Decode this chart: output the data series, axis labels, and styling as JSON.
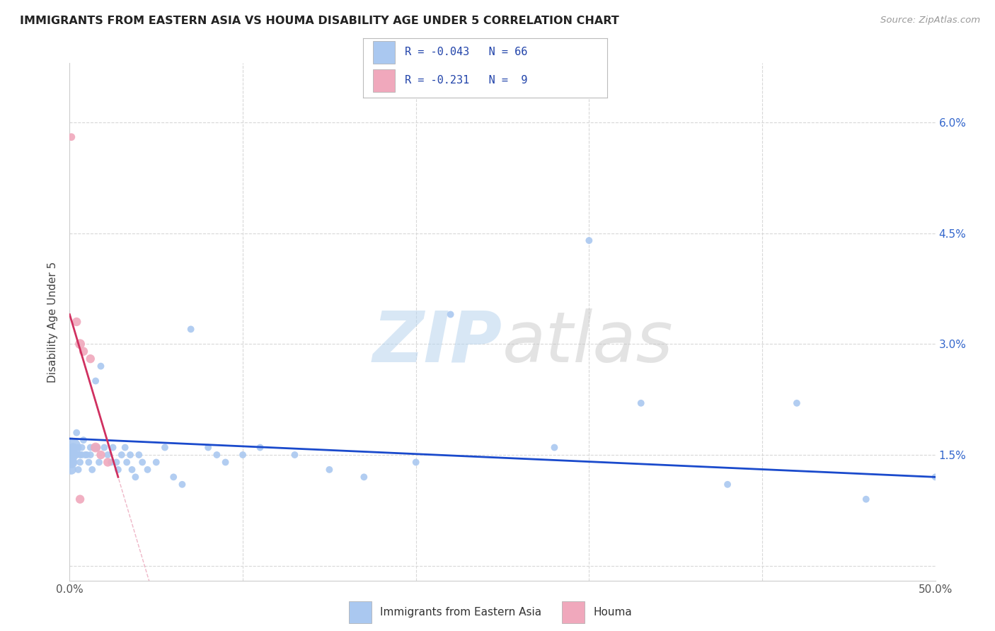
{
  "title": "IMMIGRANTS FROM EASTERN ASIA VS HOUMA DISABILITY AGE UNDER 5 CORRELATION CHART",
  "source": "Source: ZipAtlas.com",
  "ylabel": "Disability Age Under 5",
  "legend_label_blue": "Immigrants from Eastern Asia",
  "legend_label_pink": "Houma",
  "R_blue": -0.043,
  "N_blue": 66,
  "R_pink": -0.231,
  "N_pink": 9,
  "xlim": [
    0.0,
    0.5
  ],
  "ylim": [
    -0.002,
    0.068
  ],
  "color_blue": "#aac8f0",
  "color_blue_line": "#1a4acc",
  "color_pink": "#f0a8bc",
  "color_pink_line": "#d03060",
  "color_grid": "#d8d8d8",
  "background": "#ffffff",
  "blue_line_y0": 0.0172,
  "blue_line_y1": 0.012,
  "pink_line_x0": 0.0,
  "pink_line_y0": 0.034,
  "pink_line_x1": 0.028,
  "pink_line_y1": 0.012,
  "blue_x": [
    0.001,
    0.001,
    0.001,
    0.001,
    0.002,
    0.002,
    0.002,
    0.003,
    0.003,
    0.004,
    0.004,
    0.005,
    0.005,
    0.006,
    0.006,
    0.007,
    0.007,
    0.008,
    0.009,
    0.01,
    0.011,
    0.012,
    0.012,
    0.013,
    0.014,
    0.015,
    0.016,
    0.017,
    0.018,
    0.02,
    0.022,
    0.024,
    0.025,
    0.027,
    0.028,
    0.03,
    0.032,
    0.033,
    0.035,
    0.036,
    0.038,
    0.04,
    0.042,
    0.045,
    0.05,
    0.055,
    0.06,
    0.065,
    0.07,
    0.08,
    0.085,
    0.09,
    0.1,
    0.11,
    0.13,
    0.15,
    0.17,
    0.2,
    0.22,
    0.28,
    0.3,
    0.33,
    0.38,
    0.42,
    0.46,
    0.5
  ],
  "blue_y": [
    0.016,
    0.015,
    0.014,
    0.013,
    0.016,
    0.015,
    0.014,
    0.016,
    0.015,
    0.018,
    0.015,
    0.016,
    0.013,
    0.015,
    0.014,
    0.016,
    0.015,
    0.017,
    0.015,
    0.015,
    0.014,
    0.016,
    0.015,
    0.013,
    0.016,
    0.025,
    0.016,
    0.014,
    0.027,
    0.016,
    0.015,
    0.014,
    0.016,
    0.014,
    0.013,
    0.015,
    0.016,
    0.014,
    0.015,
    0.013,
    0.012,
    0.015,
    0.014,
    0.013,
    0.014,
    0.016,
    0.012,
    0.011,
    0.032,
    0.016,
    0.015,
    0.014,
    0.015,
    0.016,
    0.015,
    0.013,
    0.012,
    0.014,
    0.034,
    0.016,
    0.044,
    0.022,
    0.011,
    0.022,
    0.009,
    0.012
  ],
  "blue_size": [
    400,
    200,
    150,
    100,
    80,
    70,
    60,
    60,
    50,
    50,
    50,
    50,
    50,
    50,
    50,
    50,
    50,
    50,
    50,
    50,
    50,
    50,
    50,
    50,
    50,
    50,
    50,
    50,
    50,
    50,
    50,
    50,
    50,
    50,
    50,
    50,
    50,
    50,
    50,
    50,
    50,
    50,
    50,
    50,
    50,
    50,
    50,
    50,
    50,
    50,
    50,
    50,
    50,
    50,
    50,
    50,
    50,
    50,
    50,
    50,
    50,
    50,
    50,
    50,
    50,
    50
  ],
  "pink_x": [
    0.001,
    0.004,
    0.006,
    0.008,
    0.012,
    0.015,
    0.018,
    0.022,
    0.006
  ],
  "pink_y": [
    0.058,
    0.033,
    0.03,
    0.029,
    0.028,
    0.016,
    0.015,
    0.014,
    0.009
  ],
  "pink_size": [
    60,
    80,
    100,
    80,
    80,
    100,
    80,
    80,
    80
  ]
}
